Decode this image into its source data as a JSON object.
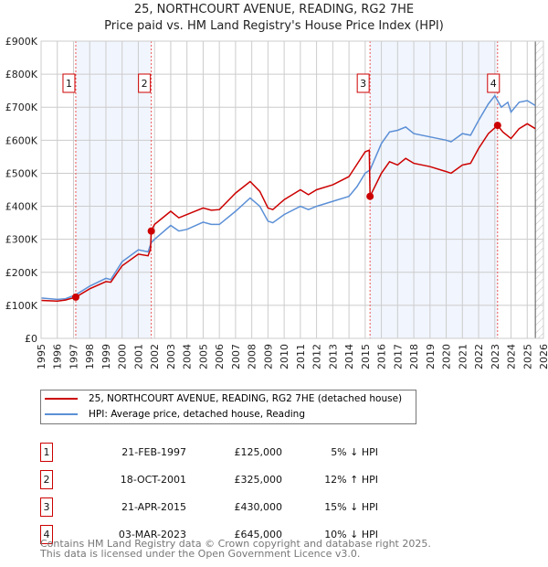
{
  "chart_data": {
    "type": "line",
    "title": "25, NORTHCOURT AVENUE, READING, RG2 7HE",
    "subtitle": "Price paid vs. HM Land Registry's House Price Index (HPI)",
    "xlim": [
      1995,
      2026
    ],
    "ylim": [
      0,
      900000
    ],
    "y_ticks": [
      {
        "v": 0,
        "label": "£0"
      },
      {
        "v": 100000,
        "label": "£100K"
      },
      {
        "v": 200000,
        "label": "£200K"
      },
      {
        "v": 300000,
        "label": "£300K"
      },
      {
        "v": 400000,
        "label": "£400K"
      },
      {
        "v": 500000,
        "label": "£500K"
      },
      {
        "v": 600000,
        "label": "£600K"
      },
      {
        "v": 700000,
        "label": "£700K"
      },
      {
        "v": 800000,
        "label": "£800K"
      },
      {
        "v": 900000,
        "label": "£900K"
      }
    ],
    "x_ticks": [
      "1995",
      "1996",
      "1997",
      "1998",
      "1999",
      "2000",
      "2001",
      "2002",
      "2003",
      "2004",
      "2005",
      "2006",
      "2007",
      "2008",
      "2009",
      "2010",
      "2011",
      "2012",
      "2013",
      "2014",
      "2015",
      "2016",
      "2017",
      "2018",
      "2019",
      "2020",
      "2021",
      "2022",
      "2023",
      "2024",
      "2025",
      "2026"
    ],
    "grid": true,
    "shaded_ranges": [
      [
        1997.14,
        2001.8
      ],
      [
        2015.3,
        2023.17
      ]
    ],
    "future_hatch_from": 2025.5,
    "series": [
      {
        "name": "25, NORTHCOURT AVENUE, READING, RG2 7HE (detached house)",
        "color": "#cc0000",
        "x": [
          1995,
          1996,
          1996.5,
          1997.14,
          1998,
          1999,
          1999.3,
          2000,
          2001,
          2001.6,
          2001.75,
          2001.8,
          2002,
          2003,
          2003.5,
          2004,
          2005,
          2005.5,
          2006,
          2007,
          2007.9,
          2008.5,
          2009,
          2009.3,
          2010,
          2011,
          2011.5,
          2012,
          2013,
          2014,
          2015,
          2015.25,
          2015.3,
          2016,
          2016.5,
          2017,
          2017.5,
          2018,
          2019,
          2020,
          2020.3,
          2021,
          2021.5,
          2022,
          2022.6,
          2023.17,
          2023.5,
          2024,
          2024.5,
          2025,
          2025.5
        ],
        "y": [
          115000,
          113000,
          116000,
          125000,
          150000,
          172000,
          170000,
          220000,
          255000,
          250000,
          270000,
          325000,
          345000,
          385000,
          365000,
          375000,
          395000,
          388000,
          390000,
          440000,
          475000,
          445000,
          395000,
          390000,
          420000,
          450000,
          435000,
          450000,
          465000,
          490000,
          565000,
          570000,
          430000,
          500000,
          535000,
          525000,
          545000,
          530000,
          520000,
          505000,
          500000,
          525000,
          530000,
          575000,
          620000,
          645000,
          625000,
          605000,
          635000,
          650000,
          635000
        ]
      },
      {
        "name": "HPI: Average price, detached house, Reading",
        "color": "#5b8fd6",
        "x": [
          1995,
          1996,
          1996.5,
          1997.14,
          1998,
          1999,
          1999.3,
          2000,
          2001,
          2001.6,
          2001.8,
          2002,
          2003,
          2003.5,
          2004,
          2005,
          2005.5,
          2006,
          2007,
          2007.9,
          2008.5,
          2009,
          2009.3,
          2010,
          2011,
          2011.5,
          2012,
          2013,
          2014,
          2014.5,
          2015,
          2015.3,
          2016,
          2016.5,
          2017,
          2017.5,
          2018,
          2019,
          2020,
          2020.3,
          2021,
          2021.5,
          2022,
          2022.6,
          2023,
          2023.4,
          2023.8,
          2024,
          2024.5,
          2025,
          2025.5
        ],
        "y": [
          122000,
          118000,
          120000,
          132000,
          158000,
          182000,
          178000,
          232000,
          268000,
          262000,
          290000,
          300000,
          342000,
          325000,
          330000,
          352000,
          345000,
          345000,
          385000,
          425000,
          400000,
          355000,
          350000,
          375000,
          400000,
          390000,
          400000,
          415000,
          430000,
          460000,
          500000,
          510000,
          590000,
          625000,
          630000,
          640000,
          620000,
          610000,
          600000,
          595000,
          620000,
          615000,
          660000,
          710000,
          735000,
          700000,
          715000,
          685000,
          715000,
          720000,
          705000
        ]
      }
    ],
    "sales": [
      {
        "n": "1",
        "x": 1997.14,
        "y": 125000,
        "date": "21-FEB-1997",
        "price": "£125,000",
        "hpi": "5% ↓ HPI"
      },
      {
        "n": "2",
        "x": 2001.8,
        "y": 325000,
        "date": "18-OCT-2001",
        "price": "£325,000",
        "hpi": "12% ↑ HPI"
      },
      {
        "n": "3",
        "x": 2015.3,
        "y": 430000,
        "date": "21-APR-2015",
        "price": "£430,000",
        "hpi": "15% ↓ HPI"
      },
      {
        "n": "4",
        "x": 2023.17,
        "y": 645000,
        "date": "03-MAR-2023",
        "price": "£645,000",
        "hpi": "10% ↓ HPI"
      }
    ],
    "footer": [
      "Contains HM Land Registry data © Crown copyright and database right 2025.",
      "This data is licensed under the Open Government Licence v3.0."
    ]
  }
}
